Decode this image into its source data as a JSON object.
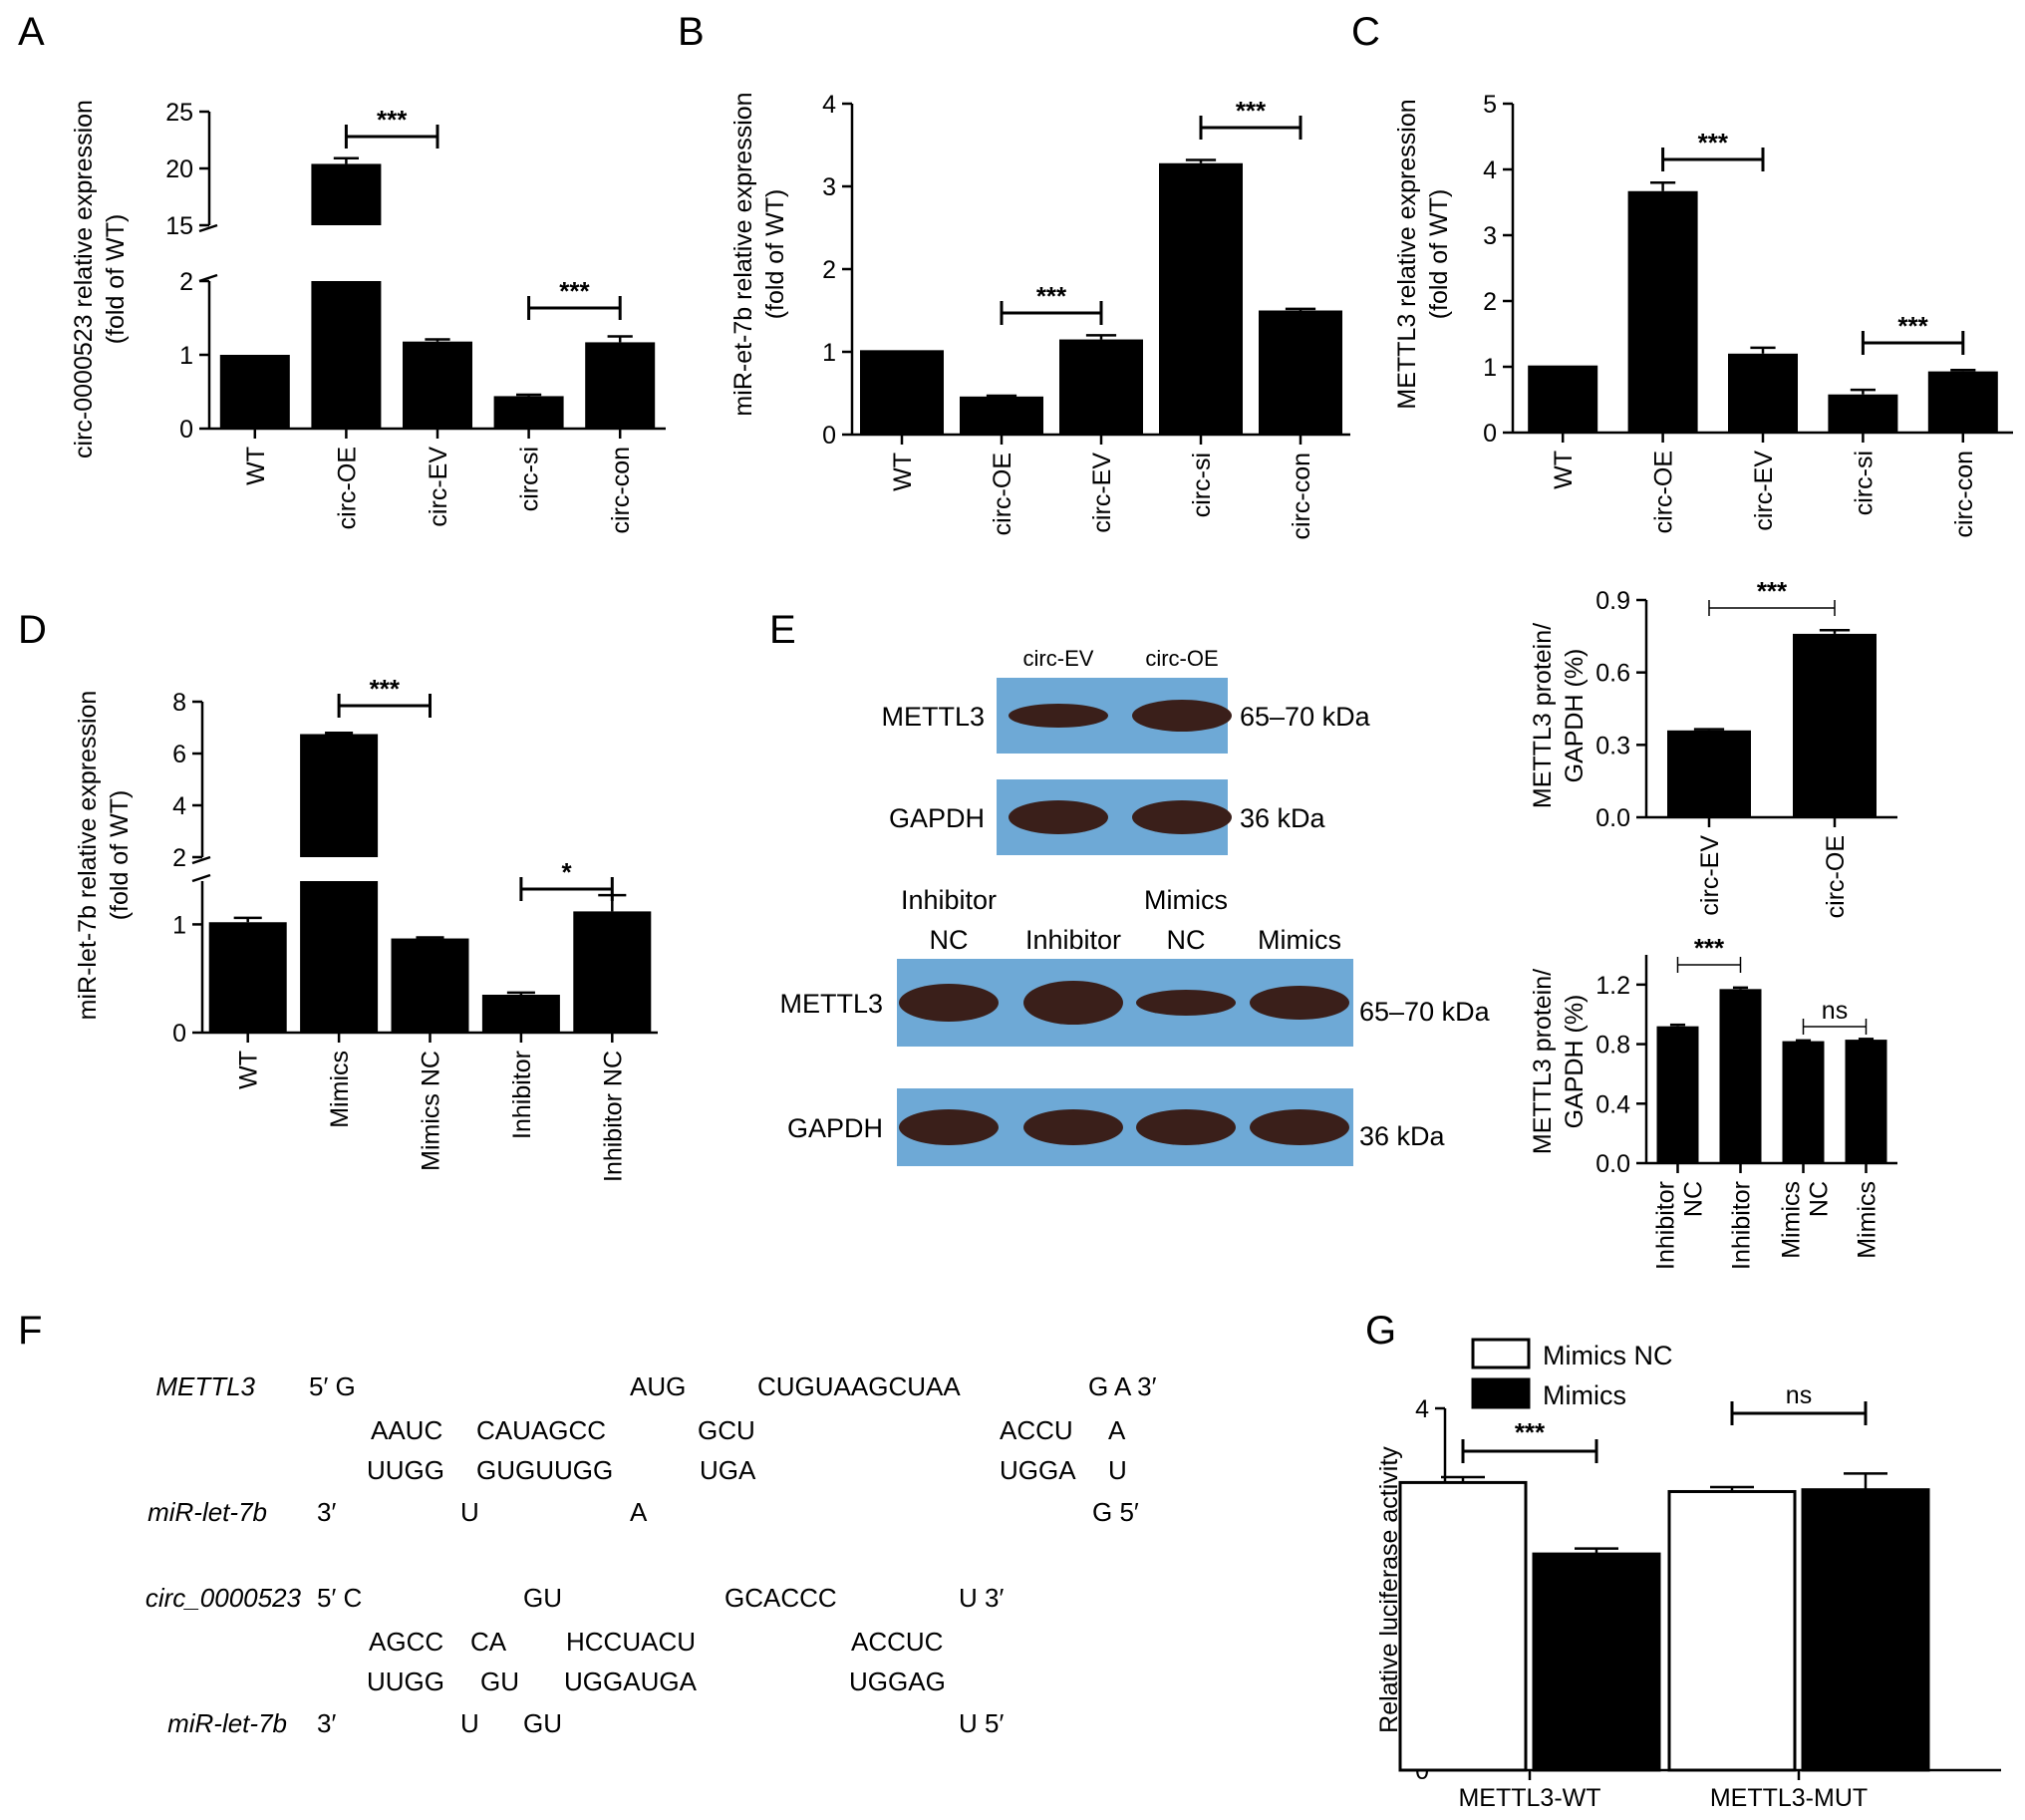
{
  "panel_labels": [
    "A",
    "B",
    "C",
    "D",
    "E",
    "F",
    "G"
  ],
  "chart_data": [
    {
      "id": "A",
      "type": "bar",
      "ylabel": [
        "circ-0000523 relative expression",
        "(fold of WT)"
      ],
      "categories": [
        "WT",
        "circ-OE",
        "circ-EV",
        "circ-si",
        "circ-con"
      ],
      "values": [
        1.0,
        20.4,
        1.18,
        0.44,
        1.17
      ],
      "errors": [
        0,
        0.5,
        0.03,
        0.02,
        0.08
      ],
      "axis_break": {
        "lower": [
          0,
          2
        ],
        "upper": [
          15,
          25
        ]
      },
      "yticks_lower": [
        0,
        1,
        2
      ],
      "yticks_upper": [
        15,
        20,
        25
      ],
      "significance": [
        {
          "from": 1,
          "to": 2,
          "label": "***"
        },
        {
          "from": 3,
          "to": 4,
          "label": "***"
        }
      ]
    },
    {
      "id": "B",
      "type": "bar",
      "ylabel": [
        "miR-et-7b relative expression",
        "(fold of WT)"
      ],
      "categories": [
        "WT",
        "circ-OE",
        "circ-EV",
        "circ-si",
        "circ-con"
      ],
      "values": [
        1.02,
        0.46,
        1.15,
        3.28,
        1.5
      ],
      "errors": [
        0,
        0.01,
        0.05,
        0.04,
        0.02
      ],
      "ylim": [
        0,
        4
      ],
      "yticks": [
        0,
        1,
        2,
        3,
        4
      ],
      "significance": [
        {
          "from": 1,
          "to": 2,
          "label": "***"
        },
        {
          "from": 3,
          "to": 4,
          "label": "***"
        }
      ]
    },
    {
      "id": "C",
      "type": "bar",
      "ylabel": [
        "METTL3 relative expression",
        "(fold of WT)"
      ],
      "categories": [
        "WT",
        "circ-OE",
        "circ-EV",
        "circ-si",
        "circ-con"
      ],
      "values": [
        1.02,
        3.67,
        1.2,
        0.58,
        0.93
      ],
      "errors": [
        0,
        0.13,
        0.09,
        0.07,
        0.02
      ],
      "ylim": [
        0,
        5
      ],
      "yticks": [
        0,
        1,
        2,
        3,
        4,
        5
      ],
      "significance": [
        {
          "from": 1,
          "to": 2,
          "label": "***"
        },
        {
          "from": 3,
          "to": 4,
          "label": "***"
        }
      ]
    },
    {
      "id": "D",
      "type": "bar",
      "ylabel": [
        "miR-let-7b relative expression",
        "(fold of WT)"
      ],
      "categories": [
        "WT",
        "Mimics",
        "Mimics NC",
        "Inhibitor",
        "Inhibitor NC"
      ],
      "values": [
        1.02,
        6.75,
        0.87,
        0.35,
        1.12
      ],
      "errors": [
        0.04,
        0.05,
        0.01,
        0.02,
        0.15
      ],
      "axis_break": {
        "lower": [
          0,
          1.4
        ],
        "upper": [
          2,
          8
        ]
      },
      "yticks_lower": [
        0,
        1
      ],
      "yticks_upper": [
        2,
        4,
        6,
        8
      ],
      "significance": [
        {
          "from": 1,
          "to": 2,
          "label": "***"
        },
        {
          "from": 3,
          "to": 4,
          "label": "*"
        }
      ]
    },
    {
      "id": "E1",
      "type": "bar",
      "ylabel": [
        "METTL3 protein/",
        "GAPDH (%)"
      ],
      "categories": [
        "circ-EV",
        "circ-OE"
      ],
      "values": [
        0.36,
        0.76
      ],
      "errors": [
        0.005,
        0.015
      ],
      "ylim": [
        0,
        0.9
      ],
      "yticks": [
        "0.0",
        "0.3",
        "0.6",
        "0.9"
      ],
      "significance": [
        {
          "from": 0,
          "to": 1,
          "label": "***"
        }
      ]
    },
    {
      "id": "E2",
      "type": "bar",
      "ylabel": [
        "METTL3 protein/",
        "GAPDH (%)"
      ],
      "categories": [
        "Inhibitor NC",
        "Inhibitor",
        "Mimics NC",
        "Mimics"
      ],
      "values": [
        0.92,
        1.17,
        0.82,
        0.83
      ],
      "errors": [
        0.01,
        0.01,
        0.005,
        0.005
      ],
      "ylim": [
        0,
        1.4
      ],
      "yticks": [
        "0.0",
        "0.4",
        "0.8",
        "1.2"
      ],
      "significance": [
        {
          "from": 0,
          "to": 1,
          "label": "***"
        },
        {
          "from": 2,
          "to": 3,
          "label": "ns"
        }
      ]
    },
    {
      "id": "G",
      "type": "bar",
      "ylabel": [
        "Relative luciferase activity"
      ],
      "categories": [
        "METTL3-WT",
        "METTL3-MUT"
      ],
      "series": [
        {
          "name": "Mimics NC",
          "values": [
            3.18,
            3.08
          ],
          "errors": [
            0.06,
            0.05
          ],
          "fill": "#ffffff"
        },
        {
          "name": "Mimics",
          "values": [
            2.39,
            3.1
          ],
          "errors": [
            0.06,
            0.18
          ],
          "fill": "#000000"
        }
      ],
      "ylim": [
        0,
        4
      ],
      "yticks": [
        0,
        1,
        2,
        3,
        4
      ],
      "legend_position": "top-left",
      "significance": [
        {
          "cat": 0,
          "label": "***"
        },
        {
          "cat": 1,
          "label": "ns"
        }
      ]
    }
  ],
  "blots": {
    "top": {
      "lanes": [
        "circ-EV",
        "circ-OE"
      ],
      "rows": [
        {
          "protein": "METTL3",
          "size": "65–70 kDa"
        },
        {
          "protein": "GAPDH",
          "size": "36 kDa"
        }
      ]
    },
    "bottom": {
      "lanes": [
        [
          "Inhibitor",
          "NC"
        ],
        [
          "Inhibitor"
        ],
        [
          "Mimics",
          "NC"
        ],
        [
          "Mimics"
        ]
      ],
      "rows": [
        {
          "protein": "METTL3",
          "size": "65–70 kDa"
        },
        {
          "protein": "GAPDH",
          "size": "36 kDa"
        }
      ]
    },
    "colors": {
      "membrane": "#6ea9d6",
      "band": "#3a1f1a"
    }
  },
  "sequences": {
    "mettl3": {
      "name_top": "METTL3",
      "name_bottom": "miR-let-7b",
      "row1": [
        {
          "t": "5′ G",
          "x": 310
        },
        {
          "t": "AUG",
          "x": 632
        },
        {
          "t": "CUGUAAGCUAA",
          "x": 760
        },
        {
          "t": "G A 3′",
          "x": 1092
        }
      ],
      "row2": [
        {
          "t": "AAUC",
          "x": 372
        },
        {
          "t": "CAUAGCC",
          "x": 478
        },
        {
          "t": "GCU",
          "x": 700
        },
        {
          "t": "ACCU",
          "x": 1003
        },
        {
          "t": "A",
          "x": 1112
        }
      ],
      "row3": [
        {
          "t": "UUGG",
          "x": 368
        },
        {
          "t": "GUGUUGG",
          "x": 478
        },
        {
          "t": "UGA",
          "x": 702
        },
        {
          "t": "UGGA",
          "x": 1003
        },
        {
          "t": "U",
          "x": 1112
        }
      ],
      "row4": [
        {
          "t": "3′",
          "x": 318
        },
        {
          "t": "U",
          "x": 462
        },
        {
          "t": "A",
          "x": 632
        },
        {
          "t": "G 5′",
          "x": 1096
        }
      ]
    },
    "circ": {
      "name_top": "circ_0000523",
      "name_bottom": "miR-let-7b",
      "row1": [
        {
          "t": "5′ C",
          "x": 318
        },
        {
          "t": "GU",
          "x": 525
        },
        {
          "t": "GCACCC",
          "x": 727
        },
        {
          "t": "U 3′",
          "x": 962
        }
      ],
      "row2": [
        {
          "t": "AGCC",
          "x": 370
        },
        {
          "t": "CA",
          "x": 472
        },
        {
          "t": "HCCUACU",
          "x": 568
        },
        {
          "t": "ACCUC",
          "x": 854
        }
      ],
      "row3": [
        {
          "t": "UUGG",
          "x": 368
        },
        {
          "t": "GU",
          "x": 482
        },
        {
          "t": "UGGAUGA",
          "x": 566
        },
        {
          "t": "UGGAG",
          "x": 852
        }
      ],
      "row4": [
        {
          "t": "3′",
          "x": 318
        },
        {
          "t": "U",
          "x": 462
        },
        {
          "t": "GU",
          "x": 525
        },
        {
          "t": "U 5′",
          "x": 962
        }
      ]
    }
  }
}
